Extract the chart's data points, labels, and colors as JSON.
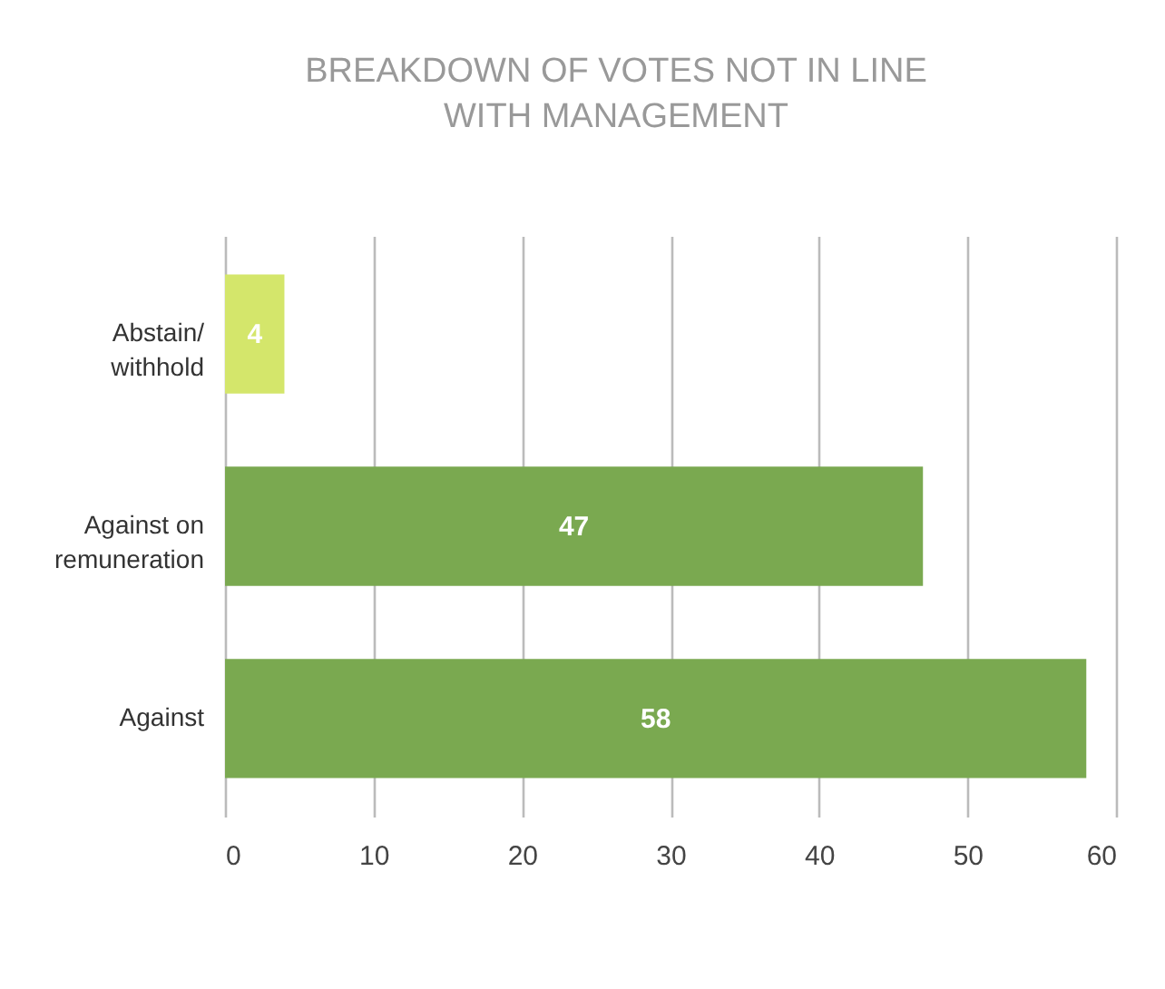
{
  "chart_data": {
    "type": "bar",
    "orientation": "horizontal",
    "title": "BREAKDOWN OF VOTES NOT IN LINE WITH MANAGEMENT",
    "categories": [
      "Abstain/ withhold",
      "Against on remuneration",
      "Against"
    ],
    "values": [
      4,
      47,
      58
    ],
    "colors": [
      "#d4e66b",
      "#7aa950",
      "#7aa950"
    ],
    "xlim": [
      0,
      60
    ],
    "xticks": [
      0,
      10,
      20,
      30,
      40,
      50,
      60
    ],
    "grid": "x",
    "data_labels": true
  }
}
